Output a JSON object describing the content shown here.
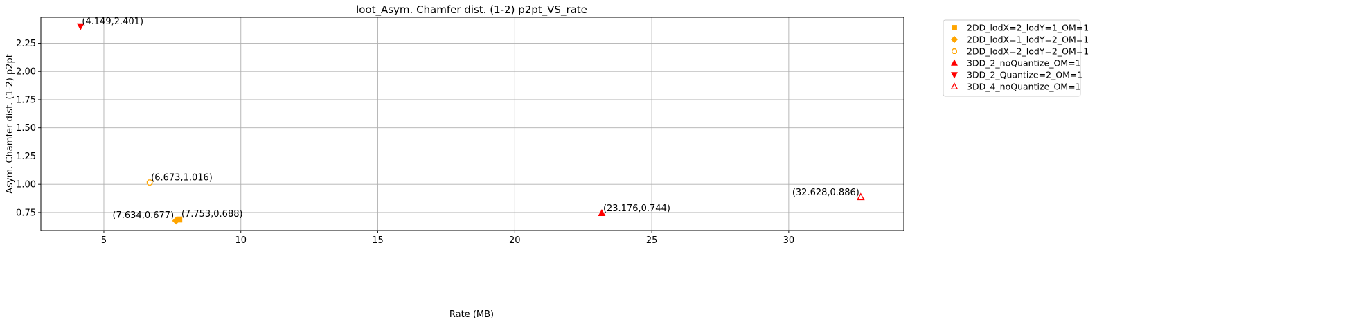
{
  "chart_data": {
    "type": "scatter",
    "title": "loot_Asym. Chamfer dist. (1-2) p2pt_VS_rate",
    "xlabel": "Rate (MB)",
    "ylabel": "Asym. Chamfer dist. (1-2) p2pt",
    "xlim": [
      2.7,
      34.2
    ],
    "ylim": [
      0.59,
      2.48
    ],
    "xticks": [
      5,
      10,
      15,
      20,
      25,
      30
    ],
    "xtick_labels": [
      "5",
      "10",
      "15",
      "20",
      "25",
      "30"
    ],
    "yticks": [
      0.75,
      1.0,
      1.25,
      1.5,
      1.75,
      2.0,
      2.25
    ],
    "ytick_labels": [
      "0.75",
      "1.00",
      "1.25",
      "1.50",
      "1.75",
      "2.00",
      "2.25"
    ],
    "grid": true,
    "legend_position": "outside-top-right",
    "series": [
      {
        "name": "2DD_lodX=2_lodY=1_OM=1",
        "marker": "square",
        "color": "#ffa500",
        "filled": true,
        "points": [
          {
            "x": 7.753,
            "y": 0.688,
            "label": "(7.753,0.688)"
          }
        ]
      },
      {
        "name": "2DD_lodX=1_lodY=2_OM=1",
        "marker": "diamond",
        "color": "#ffa500",
        "filled": true,
        "points": [
          {
            "x": 7.634,
            "y": 0.677,
            "label": "(7.634,0.677)"
          }
        ]
      },
      {
        "name": "2DD_lodX=2_lodY=2_OM=1",
        "marker": "octagon",
        "color": "#ffa500",
        "filled": false,
        "points": [
          {
            "x": 6.673,
            "y": 1.016,
            "label": "(6.673,1.016)"
          }
        ]
      },
      {
        "name": "3DD_2_noQuantize_OM=1",
        "marker": "triangle-up",
        "color": "#ff0000",
        "filled": true,
        "points": [
          {
            "x": 23.176,
            "y": 0.744,
            "label": "(23.176,0.744)"
          }
        ]
      },
      {
        "name": "3DD_2_Quantize=2_OM=1",
        "marker": "triangle-down",
        "color": "#ff0000",
        "filled": true,
        "points": [
          {
            "x": 4.149,
            "y": 2.401,
            "label": "(4.149,2.401)"
          }
        ]
      },
      {
        "name": "3DD_4_noQuantize_OM=1",
        "marker": "triangle-up",
        "color": "#ff0000",
        "filled": false,
        "points": [
          {
            "x": 32.628,
            "y": 0.886,
            "label": "(32.628,0.886)"
          }
        ]
      }
    ]
  }
}
